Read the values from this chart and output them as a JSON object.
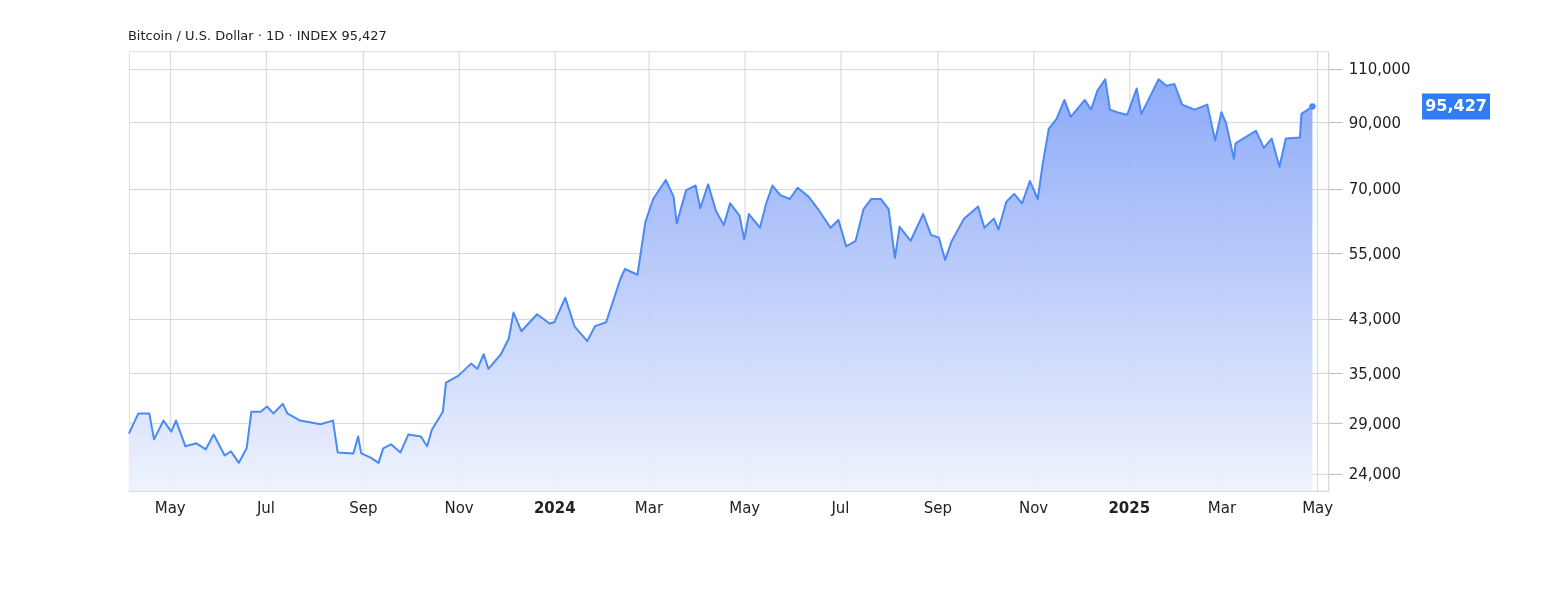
{
  "chart_data": {
    "type": "area",
    "title": "Bitcoin / U.S. Dollar · 1D · INDEX 95,427",
    "x": [
      "2023-04-05",
      "2023-04-11",
      "2023-04-18",
      "2023-04-21",
      "2023-04-27",
      "2023-05-02",
      "2023-05-05",
      "2023-05-11",
      "2023-05-18",
      "2023-05-24",
      "2023-05-29",
      "2023-06-05",
      "2023-06-09",
      "2023-06-14",
      "2023-06-19",
      "2023-06-22",
      "2023-06-28",
      "2023-07-02",
      "2023-07-06",
      "2023-07-12",
      "2023-07-15",
      "2023-07-23",
      "2023-08-05",
      "2023-08-13",
      "2023-08-16",
      "2023-08-26",
      "2023-08-29",
      "2023-08-31",
      "2023-09-06",
      "2023-09-11",
      "2023-09-14",
      "2023-09-19",
      "2023-09-25",
      "2023-09-30",
      "2023-10-08",
      "2023-10-12",
      "2023-10-15",
      "2023-10-22",
      "2023-10-24",
      "2023-11-01",
      "2023-11-09",
      "2023-11-13",
      "2023-11-17",
      "2023-11-20",
      "2023-11-28",
      "2023-12-03",
      "2023-12-06",
      "2023-12-11",
      "2023-12-21",
      "2023-12-29",
      "2024-01-01",
      "2024-01-08",
      "2024-01-14",
      "2024-01-22",
      "2024-01-27",
      "2024-02-03",
      "2024-02-12",
      "2024-02-15",
      "2024-02-23",
      "2024-02-28",
      "2024-03-04",
      "2024-03-12",
      "2024-03-17",
      "2024-03-19",
      "2024-03-25",
      "2024-03-31",
      "2024-04-03",
      "2024-04-08",
      "2024-04-13",
      "2024-04-18",
      "2024-04-22",
      "2024-04-28",
      "2024-05-01",
      "2024-05-04",
      "2024-05-11",
      "2024-05-15",
      "2024-05-19",
      "2024-05-24",
      "2024-05-30",
      "2024-06-04",
      "2024-06-11",
      "2024-06-17",
      "2024-06-25",
      "2024-06-30",
      "2024-07-05",
      "2024-07-11",
      "2024-07-16",
      "2024-07-21",
      "2024-07-27",
      "2024-08-01",
      "2024-08-05",
      "2024-08-08",
      "2024-08-15",
      "2024-08-23",
      "2024-08-28",
      "2024-09-02",
      "2024-09-06",
      "2024-09-10",
      "2024-09-18",
      "2024-09-27",
      "2024-10-01",
      "2024-10-07",
      "2024-10-10",
      "2024-10-15",
      "2024-10-20",
      "2024-10-25",
      "2024-10-30",
      "2024-11-04",
      "2024-11-07",
      "2024-11-11",
      "2024-11-16",
      "2024-11-21",
      "2024-11-25",
      "2024-12-04",
      "2024-12-08",
      "2024-12-12",
      "2024-12-17",
      "2024-12-20",
      "2024-12-25",
      "2024-12-31",
      "2025-01-06",
      "2025-01-09",
      "2025-01-15",
      "2025-01-20",
      "2025-01-25",
      "2025-01-30",
      "2025-02-04",
      "2025-02-12",
      "2025-02-20",
      "2025-02-25",
      "2025-03-01",
      "2025-03-04",
      "2025-03-09",
      "2025-03-10",
      "2025-03-18",
      "2025-03-23",
      "2025-03-28",
      "2025-04-02",
      "2025-04-07",
      "2025-04-11",
      "2025-04-20",
      "2025-04-21",
      "2025-04-28"
    ],
    "series": [
      {
        "color": "#4a8af4",
        "values": [
          27900,
          30100,
          30100,
          27300,
          29300,
          28100,
          29300,
          26600,
          26900,
          26300,
          27800,
          25700,
          26100,
          25000,
          26400,
          30300,
          30300,
          30900,
          30100,
          31200,
          30100,
          29300,
          28900,
          29300,
          26000,
          25900,
          27600,
          25900,
          25500,
          25000,
          26400,
          26800,
          26000,
          27800,
          27600,
          26600,
          28300,
          30300,
          33800,
          34700,
          36300,
          35600,
          37600,
          35600,
          37600,
          39900,
          44000,
          41000,
          43700,
          42200,
          42400,
          46500,
          41700,
          39500,
          41800,
          42400,
          49800,
          51800,
          50700,
          61800,
          67400,
          72400,
          68000,
          61500,
          69700,
          70900,
          65100,
          71200,
          64400,
          61100,
          66300,
          63300,
          57900,
          63700,
          60500,
          66300,
          70900,
          68400,
          67400,
          70300,
          68000,
          64900,
          60500,
          62300,
          56400,
          57600,
          64900,
          67400,
          67400,
          64900,
          54000,
          60700,
          57600,
          63700,
          58900,
          58300,
          53600,
          57400,
          62600,
          65500,
          60500,
          62600,
          60100,
          66700,
          68700,
          66300,
          72100,
          67400,
          76400,
          87700,
          91100,
          97800,
          91800,
          97800,
          94300,
          101300,
          105700,
          94300,
          93300,
          92500,
          102100,
          92800,
          99600,
          105700,
          103200,
          103900,
          96100,
          94300,
          96100,
          84000,
          93400,
          89600,
          78300,
          83100,
          85500,
          87100,
          81700,
          84600,
          76100,
          84600,
          84900,
          92800,
          95427
        ]
      }
    ],
    "xlim": [
      "2023-04-05",
      "2025-05-08"
    ],
    "xticks": [
      {
        "value": "2023-05-01",
        "label": "May"
      },
      {
        "value": "2023-07-01",
        "label": "Jul"
      },
      {
        "value": "2023-09-01",
        "label": "Sep"
      },
      {
        "value": "2023-11-01",
        "label": "Nov"
      },
      {
        "value": "2024-01-01",
        "label": "2024"
      },
      {
        "value": "2024-03-01",
        "label": "Mar"
      },
      {
        "value": "2024-05-01",
        "label": "May"
      },
      {
        "value": "2024-07-01",
        "label": "Jul"
      },
      {
        "value": "2024-09-01",
        "label": "Sep"
      },
      {
        "value": "2024-11-01",
        "label": "Nov"
      },
      {
        "value": "2025-01-01",
        "label": "2025"
      },
      {
        "value": "2025-03-01",
        "label": "Mar"
      },
      {
        "value": "2025-05-01",
        "label": "May"
      }
    ],
    "ylim": [
      22500,
      117500
    ],
    "yticks": [
      {
        "value": 24000,
        "label": "24,000"
      },
      {
        "value": 29000,
        "label": "29,000"
      },
      {
        "value": 35000,
        "label": "35,000"
      },
      {
        "value": 43000,
        "label": "43,000"
      },
      {
        "value": 55000,
        "label": "55,000"
      },
      {
        "value": 70000,
        "label": "70,000"
      },
      {
        "value": 90000,
        "label": "90,000"
      },
      {
        "value": 110000,
        "label": "110,000"
      }
    ],
    "log": "y",
    "grid": true,
    "annotations": [
      "95,427"
    ]
  }
}
